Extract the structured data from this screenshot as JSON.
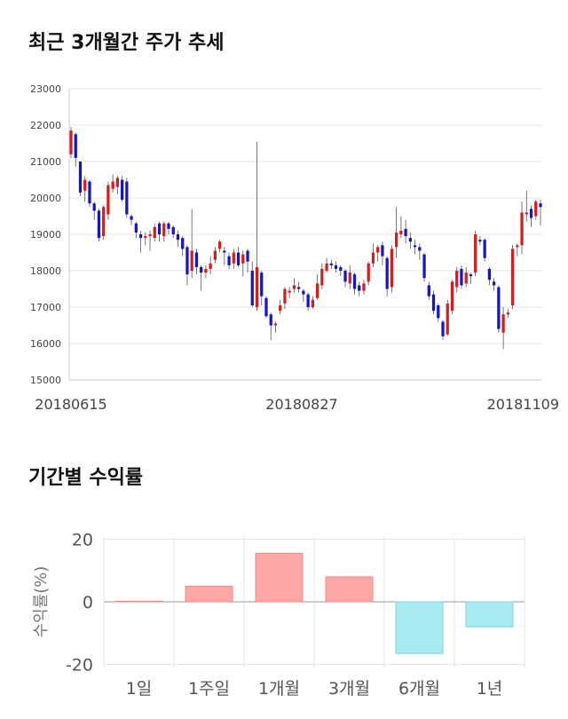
{
  "titles": {
    "price_trend": "최근 3개월간 주가 추세",
    "returns": "기간별 수익률"
  },
  "colors": {
    "up": "#d61d1d",
    "down": "#1515c8",
    "bar_positive": "#ffa6a6",
    "bar_negative": "#a9e9f2",
    "grid": "#e6e6e6"
  },
  "chart_data": [
    {
      "type": "candlestick",
      "title": "최근 3개월간 주가 추세",
      "ylim": [
        15000,
        23000
      ],
      "yticks": [
        15000,
        16000,
        17000,
        18000,
        19000,
        20000,
        21000,
        22000,
        23000
      ],
      "xtick_labels": [
        "20180615",
        "20180827",
        "20181109"
      ],
      "grid": true,
      "candles": [
        [
          21200,
          21850,
          21950,
          21100
        ],
        [
          21750,
          21100,
          21800,
          20850
        ],
        [
          21000,
          20150,
          21000,
          20050
        ],
        [
          20200,
          20500,
          20600,
          19900
        ],
        [
          20450,
          19850,
          20500,
          19750
        ],
        [
          19850,
          19650,
          19900,
          19400
        ],
        [
          19650,
          18900,
          19700,
          18800
        ],
        [
          18950,
          19750,
          19800,
          18850
        ],
        [
          19550,
          20350,
          20450,
          19400
        ],
        [
          20250,
          20450,
          20650,
          20150
        ],
        [
          20300,
          20550,
          20600,
          20100
        ],
        [
          20500,
          19950,
          20600,
          19900
        ],
        [
          20450,
          19550,
          20550,
          19450
        ],
        [
          19500,
          19400,
          19550,
          19250
        ],
        [
          19300,
          19050,
          19350,
          18900
        ],
        [
          19000,
          18900,
          19100,
          18500
        ],
        [
          18900,
          18950,
          19050,
          18700
        ],
        [
          18950,
          19000,
          19100,
          18550
        ],
        [
          18900,
          19200,
          19300,
          18800
        ],
        [
          19300,
          19000,
          19350,
          18800
        ],
        [
          18950,
          19300,
          19350,
          18800
        ],
        [
          19300,
          19150,
          19350,
          19000
        ],
        [
          19200,
          19000,
          19250,
          18900
        ],
        [
          19000,
          18850,
          19100,
          18650
        ],
        [
          18900,
          18600,
          18950,
          18400
        ],
        [
          18650,
          17900,
          18700,
          17600
        ],
        [
          18000,
          18550,
          19700,
          17800
        ],
        [
          18500,
          18100,
          18600,
          17900
        ],
        [
          18100,
          17950,
          18150,
          17450
        ],
        [
          17950,
          18050,
          18150,
          17800
        ],
        [
          18050,
          18200,
          18400,
          17900
        ],
        [
          18300,
          18550,
          18650,
          18200
        ],
        [
          18600,
          18800,
          18850,
          18500
        ],
        [
          18550,
          18500,
          18650,
          18150
        ],
        [
          18400,
          18150,
          18500,
          18050
        ],
        [
          18200,
          18500,
          18600,
          18050
        ],
        [
          18500,
          18150,
          18650,
          18100
        ],
        [
          18200,
          18450,
          18550,
          17850
        ],
        [
          18550,
          18250,
          18600,
          17950
        ],
        [
          18000,
          17050,
          18250,
          17000
        ],
        [
          17000,
          18100,
          21550,
          16900
        ],
        [
          17950,
          17300,
          18000,
          17050
        ],
        [
          17250,
          16750,
          17300,
          16700
        ],
        [
          16800,
          16500,
          16850,
          16100
        ],
        [
          16500,
          16550,
          16600,
          16300
        ],
        [
          16900,
          17050,
          17200,
          16800
        ],
        [
          17100,
          17500,
          17550,
          16950
        ],
        [
          17400,
          17450,
          17550,
          17250
        ],
        [
          17500,
          17600,
          17800,
          17400
        ],
        [
          17550,
          17500,
          17700,
          17400
        ],
        [
          17450,
          17350,
          17500,
          17150
        ],
        [
          17350,
          17000,
          17400,
          16900
        ],
        [
          17000,
          17200,
          17300,
          16950
        ],
        [
          17250,
          17650,
          17900,
          17200
        ],
        [
          17600,
          18050,
          18200,
          17500
        ],
        [
          18000,
          18200,
          18350,
          17950
        ],
        [
          18200,
          18150,
          18300,
          18050
        ],
        [
          18150,
          18050,
          18250,
          17950
        ],
        [
          18100,
          18000,
          18150,
          17850
        ],
        [
          18000,
          17700,
          18050,
          17550
        ],
        [
          17650,
          17950,
          18150,
          17500
        ],
        [
          17900,
          17500,
          17950,
          17350
        ],
        [
          17600,
          17450,
          17700,
          17300
        ],
        [
          17450,
          17650,
          17750,
          17350
        ],
        [
          17700,
          18200,
          18250,
          17600
        ],
        [
          18200,
          18500,
          18750,
          18100
        ],
        [
          18500,
          18650,
          18700,
          18250
        ],
        [
          18700,
          18400,
          18800,
          18150
        ],
        [
          18350,
          17500,
          18400,
          17300
        ],
        [
          17550,
          18600,
          18700,
          17400
        ],
        [
          18650,
          19050,
          19750,
          18350
        ],
        [
          19000,
          19100,
          19500,
          18900
        ],
        [
          19150,
          18950,
          19400,
          18750
        ],
        [
          18900,
          18800,
          19050,
          18600
        ],
        [
          18700,
          18650,
          18850,
          18450
        ],
        [
          18650,
          18550,
          18750,
          18300
        ],
        [
          18450,
          17800,
          18500,
          17700
        ],
        [
          17600,
          17300,
          17700,
          17200
        ],
        [
          17350,
          16900,
          17450,
          16800
        ],
        [
          17050,
          16700,
          17100,
          16600
        ],
        [
          16600,
          16200,
          16650,
          16100
        ],
        [
          16250,
          17100,
          17200,
          16200
        ],
        [
          16900,
          17700,
          17750,
          16800
        ],
        [
          17550,
          18000,
          18100,
          17400
        ],
        [
          18050,
          17600,
          18150,
          17500
        ],
        [
          17650,
          17950,
          18100,
          17550
        ],
        [
          17900,
          17850,
          17950,
          17650
        ],
        [
          17950,
          19000,
          19100,
          17850
        ],
        [
          18850,
          18800,
          18950,
          18700
        ],
        [
          18850,
          18350,
          18900,
          18250
        ],
        [
          18050,
          17750,
          18100,
          17600
        ],
        [
          17700,
          17600,
          17800,
          17450
        ],
        [
          17550,
          16400,
          17600,
          16300
        ],
        [
          16300,
          16800,
          17000,
          15850
        ],
        [
          16800,
          16850,
          16950,
          16700
        ],
        [
          17050,
          18600,
          18700,
          16950
        ],
        [
          18650,
          18700,
          18750,
          18400
        ],
        [
          18700,
          19600,
          19900,
          18450
        ],
        [
          19550,
          19600,
          20200,
          19350
        ],
        [
          19700,
          19450,
          19800,
          19200
        ],
        [
          19500,
          19900,
          19950,
          19400
        ],
        [
          19850,
          19750,
          19950,
          19250
        ]
      ]
    },
    {
      "type": "bar",
      "categories": [
        "1일",
        "1주일",
        "1개월",
        "3개월",
        "6개월",
        "1년"
      ],
      "values": [
        0.2,
        5.0,
        15.5,
        8.0,
        -16.5,
        -8.0
      ],
      "ylabel": "수익률(%)",
      "ylim": [
        -21,
        21
      ],
      "yticks": [
        -20,
        0,
        20
      ],
      "grid": true
    }
  ]
}
